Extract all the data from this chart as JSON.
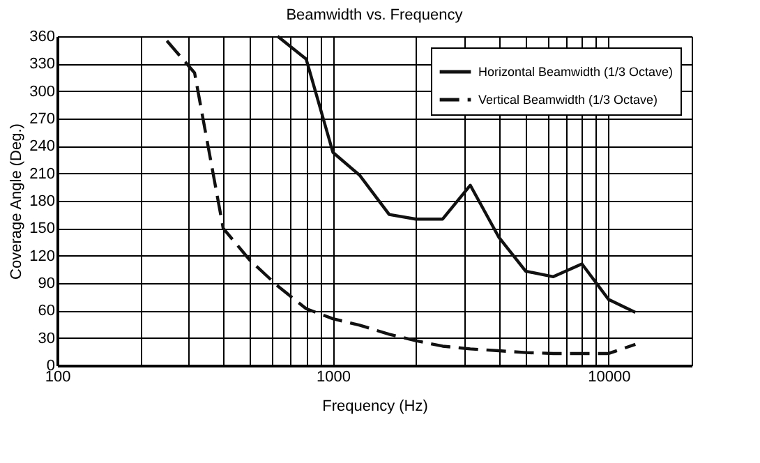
{
  "chart_data": {
    "type": "line",
    "title": "Beamwidth vs. Frequency",
    "xlabel": "Frequency (Hz)",
    "ylabel": "Coverage Angle (Deg.)",
    "log": "x",
    "xlim": [
      100,
      20000
    ],
    "xticks": [
      100,
      {
        "value": 200,
        "label": null
      },
      {
        "value": 300,
        "label": null
      },
      {
        "value": 400,
        "label": null
      },
      {
        "value": 500,
        "label": null
      },
      {
        "value": 600,
        "label": null
      },
      {
        "value": 700,
        "label": null
      },
      {
        "value": 800,
        "label": null
      },
      {
        "value": 900,
        "label": null
      },
      1000,
      {
        "value": 2000,
        "label": null
      },
      {
        "value": 3000,
        "label": null
      },
      {
        "value": 4000,
        "label": null
      },
      {
        "value": 5000,
        "label": null
      },
      {
        "value": 6000,
        "label": null
      },
      {
        "value": 7000,
        "label": null
      },
      {
        "value": 8000,
        "label": null
      },
      {
        "value": 9000,
        "label": null
      },
      10000,
      {
        "value": 20000,
        "label": null
      }
    ],
    "ylim": [
      0,
      360
    ],
    "yticks": [
      0,
      30,
      60,
      90,
      120,
      150,
      180,
      210,
      240,
      270,
      300,
      330,
      360
    ],
    "grid": true,
    "legend": "top right",
    "marker": "none",
    "series": [
      {
        "name": "Horizontal Beamwidth (1/3 Octave)",
        "color": "#111111",
        "line_style": "solid",
        "x": [
          630,
          800,
          1000,
          1250,
          1600,
          2000,
          2500,
          3150,
          4000,
          5000,
          6300,
          8000,
          10000,
          12500
        ],
        "values": [
          360,
          335,
          233,
          208,
          165,
          160,
          160,
          197,
          140,
          103,
          97,
          111,
          72,
          58
        ]
      },
      {
        "name": "Vertical Beamwidth (1/3 Octave)",
        "color": "#111111",
        "line_style": "dashed",
        "x": [
          250,
          315,
          400,
          500,
          630,
          800,
          1000,
          1250,
          1600,
          2000,
          2500,
          3150,
          4000,
          5000,
          6300,
          8000,
          10000,
          12500
        ],
        "values": [
          355,
          320,
          150,
          115,
          87,
          62,
          51,
          44,
          34,
          27,
          21,
          18,
          16,
          14,
          13,
          13,
          13,
          23
        ]
      }
    ]
  }
}
